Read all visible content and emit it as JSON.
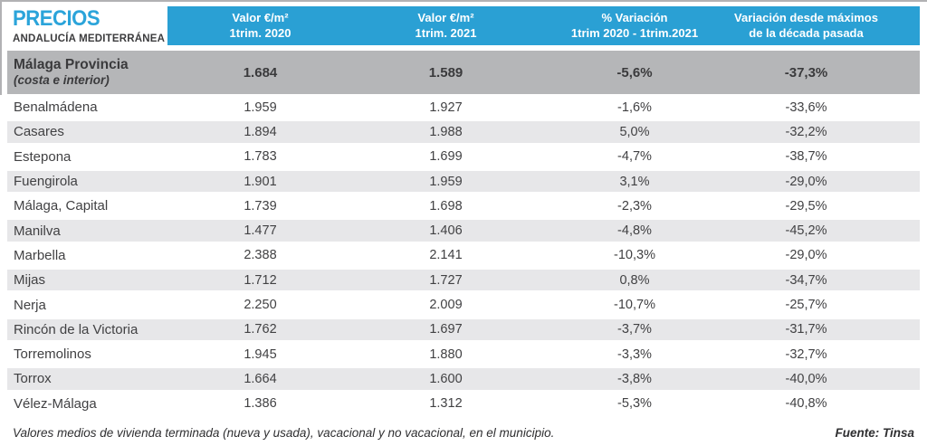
{
  "title": {
    "main": "PRECIOS",
    "subtitle": "ANDALUCÍA MEDITERRÁNEA"
  },
  "chart_data": {
    "type": "table",
    "title": "PRECIOS",
    "subtitle": "ANDALUCÍA MEDITERRÁNEA",
    "columns": [
      {
        "line1": "Valor €/m²",
        "line2": "1trim. 2020"
      },
      {
        "line1": "Valor €/m²",
        "line2": "1trim. 2021"
      },
      {
        "line1": "% Variación",
        "line2": "1trim 2020 - 1trim.2021"
      },
      {
        "line1": "Variación desde máximos",
        "line2": "de la década pasada"
      }
    ],
    "summary_row": {
      "name": "Málaga Provincia",
      "note": "(costa e interior)",
      "v2020": "1.684",
      "v2021": "1.589",
      "var": "-5,6%",
      "var_max": "-37,3%"
    },
    "rows": [
      {
        "name": "Benalmádena",
        "v2020": "1.959",
        "v2021": "1.927",
        "var": "-1,6%",
        "var_max": "-33,6%"
      },
      {
        "name": "Casares",
        "v2020": "1.894",
        "v2021": "1.988",
        "var": "5,0%",
        "var_max": "-32,2%"
      },
      {
        "name": "Estepona",
        "v2020": "1.783",
        "v2021": "1.699",
        "var": "-4,7%",
        "var_max": "-38,7%"
      },
      {
        "name": "Fuengirola",
        "v2020": "1.901",
        "v2021": "1.959",
        "var": "3,1%",
        "var_max": "-29,0%"
      },
      {
        "name": "Málaga, Capital",
        "v2020": "1.739",
        "v2021": "1.698",
        "var": "-2,3%",
        "var_max": "-29,5%"
      },
      {
        "name": "Manilva",
        "v2020": "1.477",
        "v2021": "1.406",
        "var": "-4,8%",
        "var_max": "-45,2%"
      },
      {
        "name": "Marbella",
        "v2020": "2.388",
        "v2021": "2.141",
        "var": "-10,3%",
        "var_max": "-29,0%"
      },
      {
        "name": "Mijas",
        "v2020": "1.712",
        "v2021": "1.727",
        "var": "0,8%",
        "var_max": "-34,7%"
      },
      {
        "name": "Nerja",
        "v2020": "2.250",
        "v2021": "2.009",
        "var": "-10,7%",
        "var_max": "-25,7%"
      },
      {
        "name": "Rincón de la Victoria",
        "v2020": "1.762",
        "v2021": "1.697",
        "var": "-3,7%",
        "var_max": "-31,7%"
      },
      {
        "name": "Torremolinos",
        "v2020": "1.945",
        "v2021": "1.880",
        "var": "-3,3%",
        "var_max": "-32,7%"
      },
      {
        "name": "Torrox",
        "v2020": "1.664",
        "v2021": "1.600",
        "var": "-3,8%",
        "var_max": "-40,0%"
      },
      {
        "name": "Vélez-Málaga",
        "v2020": "1.386",
        "v2021": "1.312",
        "var": "-5,3%",
        "var_max": "-40,8%"
      }
    ],
    "layout": {
      "striping": "alternate rows light gray starting with second data row",
      "grid": false
    }
  },
  "footer": {
    "note": "Valores medios de vivienda terminada (nueva y usada), vacacional y no vacacional, en el municipio.",
    "source": "Fuente: Tinsa"
  },
  "colors": {
    "header_blue": "#2aa0d4",
    "title_blue": "#2ba4da",
    "summary_gray": "#b5b6b8",
    "stripe_gray": "#e7e7e9",
    "text_dark": "#3c3c3e",
    "frame_line": "#b2b2b4"
  }
}
